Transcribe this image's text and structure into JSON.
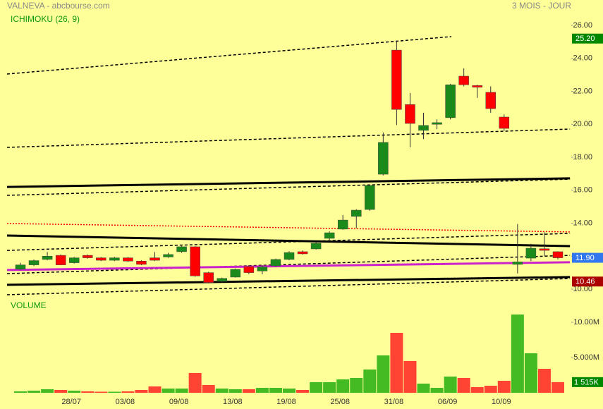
{
  "chart_data": {
    "type": "candlestick",
    "title": "VALNEVA - abcbourse.com",
    "subtitle": "3 MOIS - JOUR",
    "indicator_label": "ICHIMOKU (26, 9)",
    "volume_label": "VOLUME",
    "categories": [
      null,
      null,
      null,
      null,
      "28/07",
      null,
      null,
      null,
      "03/08",
      null,
      null,
      null,
      "09/08",
      null,
      null,
      null,
      "13/08",
      null,
      null,
      null,
      "19/08",
      null,
      null,
      null,
      "25/08",
      null,
      null,
      null,
      "31/08",
      null,
      null,
      null,
      "06/09",
      null,
      null,
      null,
      "10/09",
      null,
      null,
      null,
      null
    ],
    "open": [
      11.21,
      11.47,
      11.8,
      12.05,
      11.6,
      12.05,
      11.9,
      11.75,
      11.9,
      11.7,
      11.9,
      11.95,
      12.27,
      12.57,
      11.0,
      10.47,
      10.73,
      11.37,
      11.1,
      11.41,
      11.8,
      12.27,
      12.44,
      13.08,
      13.64,
      14.41,
      14.83,
      16.97,
      24.5,
      21.2,
      19.63,
      20.0,
      20.4,
      22.92,
      22.35,
      21.94,
      20.44,
      11.5,
      11.88,
      12.45,
      12.27
    ],
    "high": [
      11.6,
      11.8,
      12.25,
      12.1,
      11.95,
      12.1,
      11.95,
      11.95,
      11.95,
      11.75,
      12.25,
      12.2,
      12.62,
      12.6,
      11.05,
      10.7,
      11.25,
      11.45,
      11.45,
      11.85,
      12.3,
      12.35,
      12.85,
      13.5,
      14.5,
      14.85,
      16.35,
      19.5,
      25.06,
      21.9,
      20.7,
      20.3,
      22.45,
      23.4,
      22.4,
      22.3,
      20.6,
      13.95,
      12.75,
      13.45,
      12.3
    ],
    "low": [
      11.15,
      11.4,
      11.75,
      11.45,
      11.55,
      11.85,
      11.7,
      11.7,
      11.65,
      11.45,
      11.7,
      11.9,
      12.2,
      10.75,
      10.35,
      10.4,
      10.7,
      10.9,
      10.9,
      11.35,
      11.75,
      12.1,
      12.4,
      13.0,
      13.6,
      13.7,
      14.75,
      16.9,
      19.95,
      18.6,
      19.1,
      19.7,
      20.3,
      22.3,
      21.6,
      20.7,
      19.6,
      10.95,
      11.7,
      12.0,
      11.8
    ],
    "close": [
      11.47,
      11.73,
      12.0,
      11.47,
      11.9,
      11.9,
      11.75,
      11.9,
      11.7,
      11.5,
      11.75,
      12.1,
      12.57,
      10.8,
      10.4,
      10.65,
      11.2,
      11.0,
      11.35,
      11.8,
      12.22,
      12.14,
      12.78,
      13.42,
      14.19,
      14.79,
      16.29,
      18.9,
      20.9,
      20.05,
      19.93,
      20.1,
      22.4,
      22.4,
      22.25,
      20.95,
      19.75,
      11.65,
      12.48,
      12.35,
      11.9
    ],
    "volume": [
      200000,
      300000,
      500000,
      400000,
      300000,
      200000,
      150000,
      150000,
      200000,
      400000,
      900000,
      600000,
      600000,
      2800000,
      1100000,
      600000,
      500000,
      500000,
      700000,
      700000,
      600000,
      400000,
      1500000,
      1500000,
      1900000,
      2100000,
      3300000,
      5300000,
      8500000,
      4500000,
      1300000,
      700000,
      2300000,
      2100000,
      800000,
      1000000,
      1700000,
      11100000,
      5600000,
      3400000,
      1515000
    ],
    "up_color": "#1a8a1a",
    "down_color": "#ff0000",
    "volume_up_color": "#44bb22",
    "volume_down_color": "#ff4433",
    "ylim": [
      10,
      26
    ],
    "yticks": [
      {
        "value": 10,
        "label": "10.00"
      },
      {
        "value": 12,
        "label": "12.00"
      },
      {
        "value": 14,
        "label": "14.00"
      },
      {
        "value": 16,
        "label": "16.00"
      },
      {
        "value": 18,
        "label": "18.00"
      },
      {
        "value": 20,
        "label": "20.00"
      },
      {
        "value": 22,
        "label": "22.00"
      },
      {
        "value": 24,
        "label": "24.00"
      },
      {
        "value": 26,
        "label": "26.00"
      }
    ],
    "volume_ylim": [
      0,
      10000000
    ],
    "volume_ticks": [
      {
        "value": 5000000,
        "label": "5.000M"
      },
      {
        "value": 10000000,
        "label": "10.00M"
      }
    ],
    "price_tags": [
      {
        "value": 25.2,
        "label": "25.20",
        "color": "#008800"
      },
      {
        "value": 11.9,
        "label": "11.90",
        "color": "#3377ee"
      },
      {
        "value": 10.46,
        "label": "10.46",
        "color": "#aa0000"
      }
    ],
    "volume_tag": {
      "value": 1515000,
      "label": "1 515K",
      "color": "#008800"
    },
    "overlays": [
      {
        "x": [
          -1,
          32.07
        ],
        "values": [
          23.05,
          25.32
        ],
        "color": "#000000",
        "style": "dashed",
        "width": 1.5
      },
      {
        "x": [
          -1,
          40.9
        ],
        "values": [
          18.6,
          19.71
        ],
        "color": "#000000",
        "style": "dashed",
        "width": 1.5
      },
      {
        "x": [
          -1,
          40.9
        ],
        "values": [
          16.2,
          16.72
        ],
        "color": "#000000",
        "style": "solid",
        "width": 3
      },
      {
        "x": [
          -1,
          40.9
        ],
        "values": [
          15.69,
          16.67
        ],
        "color": "#000000",
        "style": "dashed",
        "width": 1.5
      },
      {
        "x": [
          -1,
          40.9
        ],
        "values": [
          13.98,
          13.47
        ],
        "color": "#ee0000",
        "style": "dotted",
        "width": 1.5
      },
      {
        "x": [
          -1,
          40.9
        ],
        "values": [
          13.25,
          12.61
        ],
        "color": "#000000",
        "style": "solid",
        "width": 3
      },
      {
        "x": [
          -1,
          40.9
        ],
        "values": [
          12.35,
          13.38
        ],
        "color": "#000000",
        "style": "dashed",
        "width": 1.5
      },
      {
        "x": [
          -1,
          40.9
        ],
        "values": [
          10.94,
          12.05
        ],
        "color": "#000000",
        "style": "dashed",
        "width": 1.5
      },
      {
        "x": [
          -1,
          40.9
        ],
        "values": [
          11.16,
          11.63
        ],
        "color": "#cc22cc",
        "style": "solid",
        "width": 3
      },
      {
        "x": [
          -1,
          40.9
        ],
        "values": [
          10.26,
          10.73
        ],
        "color": "#000000",
        "style": "solid",
        "width": 3
      },
      {
        "x": [
          -1,
          40.9
        ],
        "values": [
          9.66,
          10.64
        ],
        "color": "#000000",
        "style": "dashed",
        "width": 1.5
      }
    ]
  }
}
